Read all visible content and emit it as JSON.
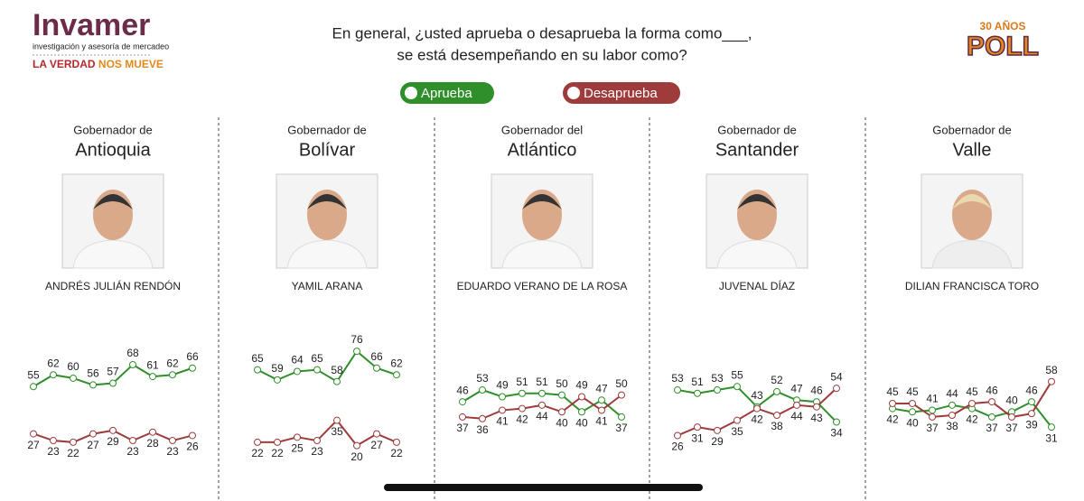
{
  "header": {
    "brand": "Invamer",
    "brand_tagline": "investigación y asesoría de mercadeo",
    "slogan_a": "LA VERDAD",
    "slogan_b": "NOS MUEVE",
    "badge_top": "30 AÑOS",
    "badge": "POLL",
    "question_line1": "En general, ¿usted aprueba o desaprueba la forma como___,",
    "question_line2": "se está desempeñando en su labor como?"
  },
  "legend": [
    {
      "name": "Aprueba",
      "color": "#2f8f2a"
    },
    {
      "name": "Desaprueba",
      "color": "#9e3b3b"
    }
  ],
  "chart_data": [
    {
      "type": "line",
      "title": "Gobernador de",
      "region": "Antioquia",
      "person": "ANDRÉS JULIÁN RENDÓN",
      "categories": [
        null,
        null,
        null,
        null,
        null,
        null,
        null,
        null,
        null
      ],
      "ylim": [
        15,
        80
      ],
      "series": [
        {
          "color": "#2f8f2a",
          "values": [
            55,
            62,
            60,
            56,
            57,
            68,
            61,
            62,
            66
          ]
        },
        {
          "color": "#9e3b3b",
          "values": [
            27,
            23,
            22,
            27,
            29,
            23,
            28,
            23,
            26
          ]
        }
      ]
    },
    {
      "type": "line",
      "title": "Gobernador de",
      "region": "Bolívar",
      "person": "YAMIL ARANA",
      "categories": [
        null,
        null,
        null,
        null,
        null,
        null,
        null,
        null
      ],
      "ylim": [
        15,
        80
      ],
      "series": [
        {
          "color": "#2f8f2a",
          "values": [
            65,
            59,
            64,
            65,
            58,
            76,
            66,
            62
          ]
        },
        {
          "color": "#9e3b3b",
          "values": [
            22,
            22,
            25,
            23,
            35,
            20,
            27,
            22
          ]
        }
      ]
    },
    {
      "type": "line",
      "title": "Gobernador del",
      "region": "Atlántico",
      "person": "EDUARDO VERANO DE LA ROSA",
      "categories": [
        null,
        null,
        null,
        null,
        null,
        null,
        null,
        null,
        null
      ],
      "ylim": [
        15,
        80
      ],
      "series": [
        {
          "color": "#2f8f2a",
          "values": [
            46,
            53,
            49,
            51,
            51,
            50,
            40,
            47,
            37
          ]
        },
        {
          "color": "#9e3b3b",
          "values": [
            37,
            36,
            41,
            42,
            44,
            40,
            49,
            41,
            50
          ]
        }
      ]
    },
    {
      "type": "line",
      "title": "Gobernador de",
      "region": "Santander",
      "person": "JUVENAL DÍAZ",
      "categories": [
        null,
        null,
        null,
        null,
        null,
        null,
        null,
        null,
        null
      ],
      "ylim": [
        15,
        80
      ],
      "series": [
        {
          "color": "#2f8f2a",
          "values": [
            53,
            51,
            53,
            55,
            43,
            52,
            47,
            46,
            34
          ]
        },
        {
          "color": "#9e3b3b",
          "values": [
            26,
            31,
            29,
            35,
            42,
            38,
            44,
            43,
            54
          ]
        }
      ]
    },
    {
      "type": "line",
      "title": "Gobernador de",
      "region": "Valle",
      "person": "DILIAN FRANCISCA TORO",
      "categories": [
        null,
        null,
        null,
        null,
        null,
        null,
        null,
        null,
        null
      ],
      "ylim": [
        15,
        80
      ],
      "series": [
        {
          "color": "#2f8f2a",
          "values": [
            42,
            40,
            41,
            44,
            42,
            37,
            40,
            46,
            31
          ]
        },
        {
          "color": "#9e3b3b",
          "values": [
            45,
            45,
            37,
            38,
            45,
            46,
            37,
            39,
            58
          ]
        }
      ]
    }
  ]
}
